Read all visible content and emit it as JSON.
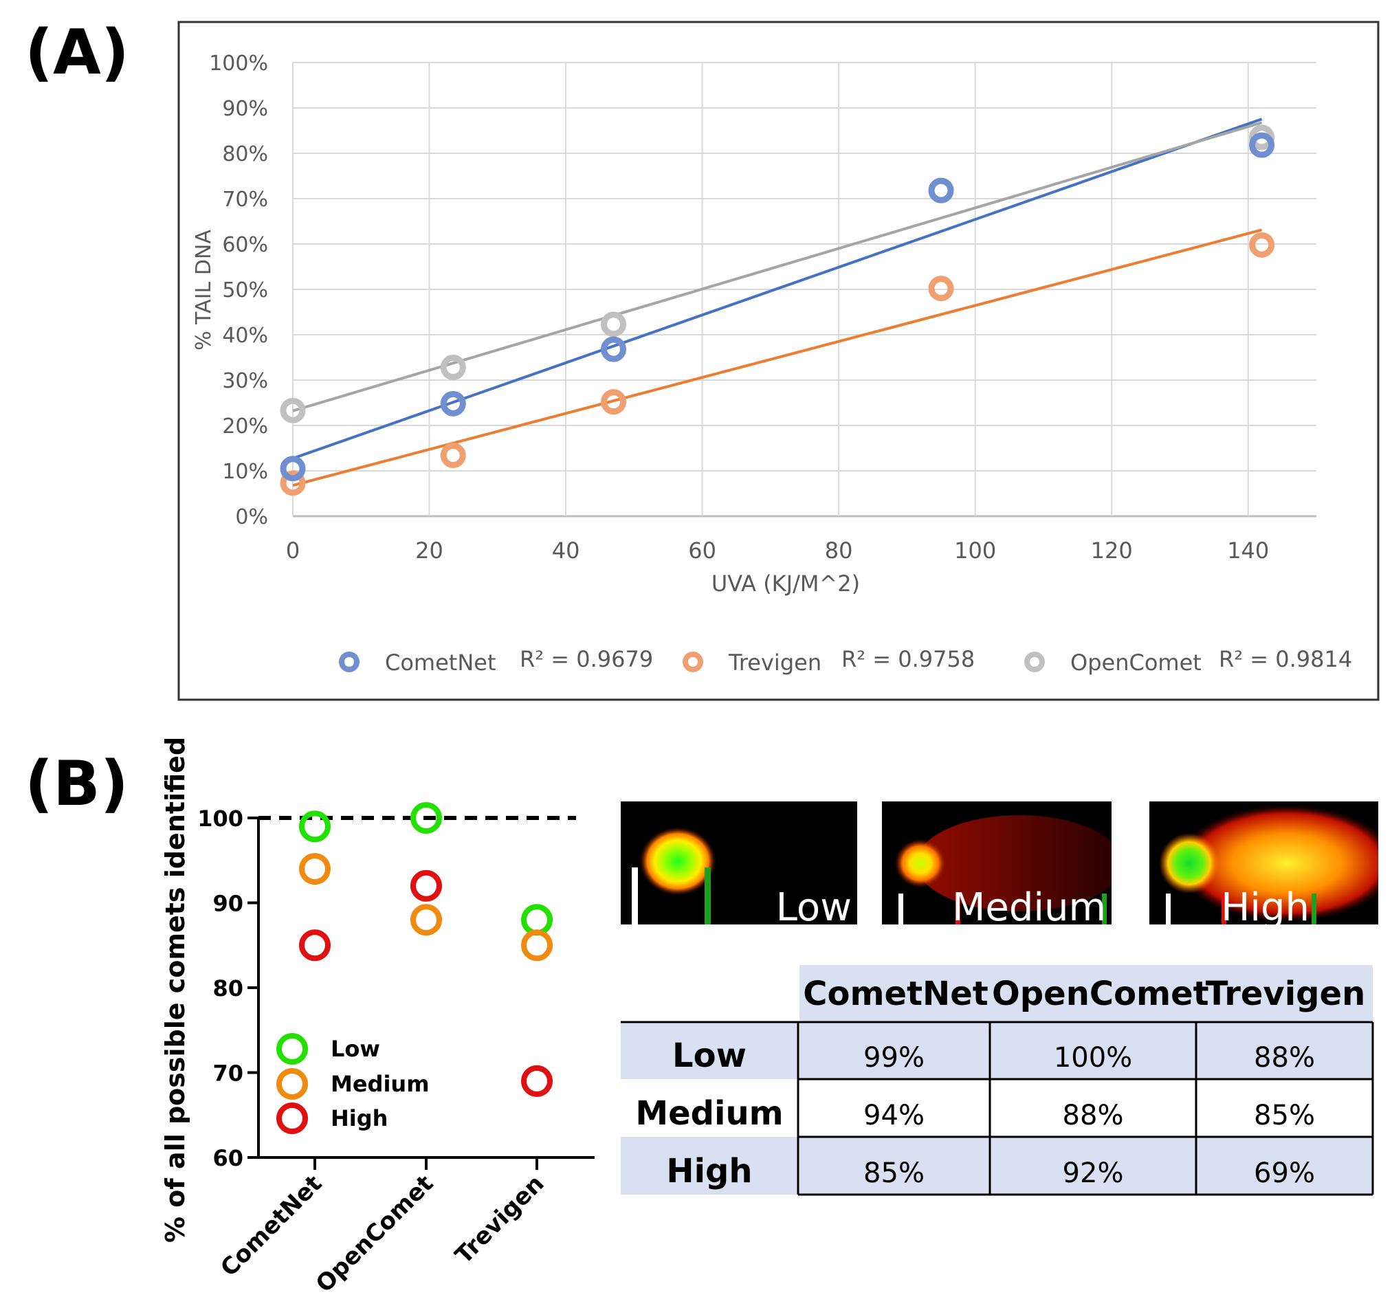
{
  "panel_labels": {
    "a": "(A)",
    "b": "(B)"
  },
  "chart_data": [
    {
      "type": "scatter",
      "panel": "A",
      "title": "",
      "xlabel": "UVA (KJ/M^2)",
      "ylabel": "% TAIL DNA",
      "xlim": [
        0,
        150
      ],
      "ylim": [
        0,
        100
      ],
      "x_ticks": [
        "0",
        "20",
        "40",
        "60",
        "80",
        "100",
        "120",
        "140"
      ],
      "y_ticks": [
        "0%",
        "10%",
        "20%",
        "30%",
        "40%",
        "50%",
        "60%",
        "70%",
        "80%",
        "90%",
        "100%"
      ],
      "grid": true,
      "legend_position": "bottom",
      "x": [
        0,
        23.5,
        47,
        95,
        142
      ],
      "series": [
        {
          "name": "CometNet",
          "r2": "R² = 0.9679",
          "color": "#6f8fd0",
          "line_color": "#4472c4",
          "values": [
            10.5,
            24.8,
            36.8,
            71.8,
            81.8
          ]
        },
        {
          "name": "Trevigen",
          "r2": "R² = 0.9758",
          "color": "#f0a070",
          "line_color": "#ed7d31",
          "values": [
            7.3,
            13.4,
            25.2,
            50.2,
            59.8
          ]
        },
        {
          "name": "OpenComet",
          "r2": "R² = 0.9814",
          "color": "#c0c0c0",
          "line_color": "#a5a5a5",
          "values": [
            23.3,
            32.8,
            42.3,
            71.8,
            83.5
          ]
        }
      ]
    },
    {
      "type": "scatter",
      "panel": "B",
      "title": "",
      "xlabel": "",
      "ylabel": "% of all possible comets identified",
      "ylim": [
        60,
        100
      ],
      "y_ticks": [
        "60",
        "70",
        "80",
        "90",
        "100"
      ],
      "reference_line": 100,
      "categories": [
        "CometNet",
        "OpenComet",
        "Trevigen"
      ],
      "legend_position": "bottom-left",
      "series": [
        {
          "name": "Low",
          "color": "#22e000",
          "values": [
            99,
            100,
            88
          ]
        },
        {
          "name": "Medium",
          "color": "#f08a10",
          "values": [
            94,
            88,
            85
          ]
        },
        {
          "name": "High",
          "color": "#e01010",
          "values": [
            85,
            92,
            69
          ]
        }
      ]
    },
    {
      "type": "table",
      "panel": "B",
      "columns": [
        "CometNet",
        "OpenComet",
        "Trevigen"
      ],
      "rows": [
        {
          "label": "Low",
          "values": [
            "99%",
            "100%",
            "88%"
          ]
        },
        {
          "label": "Medium",
          "values": [
            "94%",
            "88%",
            "85%"
          ]
        },
        {
          "label": "High",
          "values": [
            "85%",
            "92%",
            "69%"
          ]
        }
      ]
    }
  ],
  "comet_images": [
    {
      "label": "Low"
    },
    {
      "label": "Medium"
    },
    {
      "label": "High"
    }
  ]
}
